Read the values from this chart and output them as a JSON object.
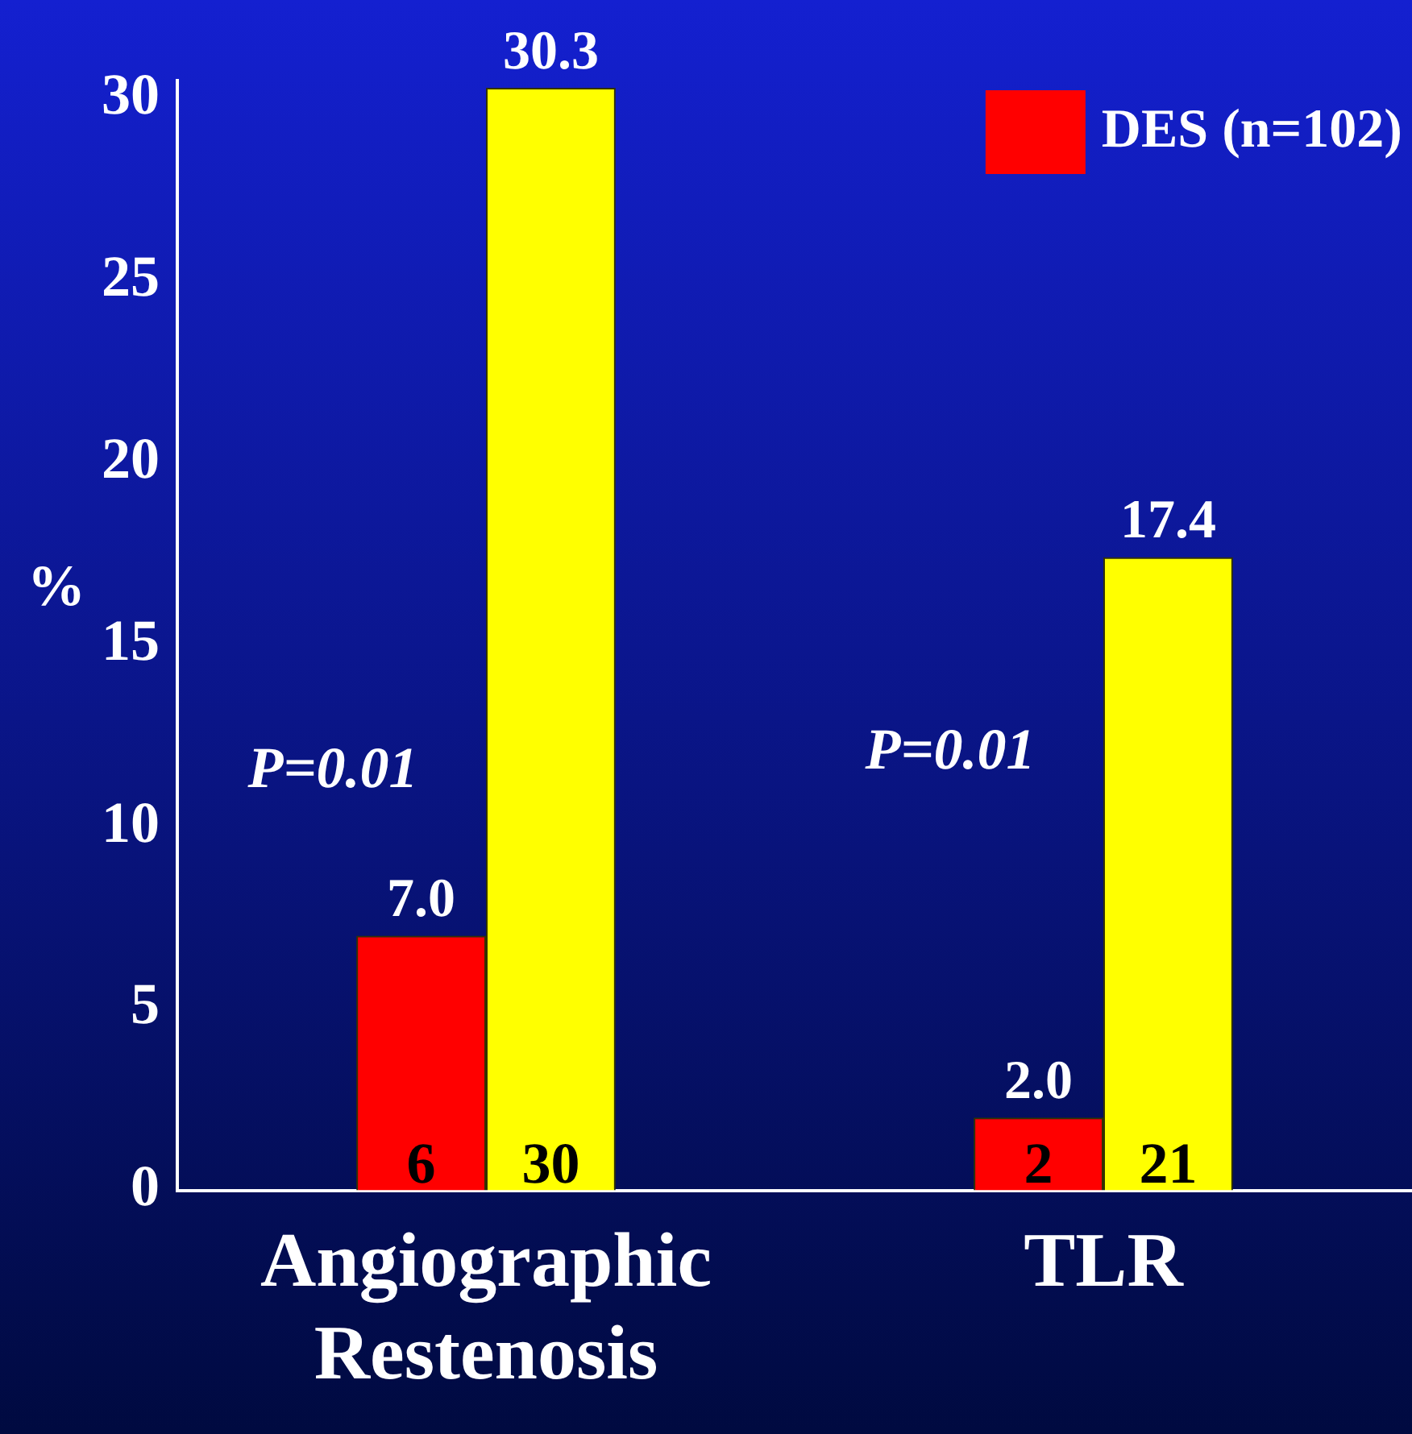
{
  "chart_data": {
    "type": "bar",
    "ylabel": "%",
    "categories": [
      "Angiographic Restenosis",
      "TLR"
    ],
    "series": [
      {
        "name": "DES (n=102)",
        "color": "#ff0000",
        "values": [
          7.0,
          2.0
        ],
        "value_labels": [
          "7.0",
          "2.0"
        ]
      },
      {
        "color": "#ffff00",
        "values": [
          30.3,
          17.4
        ],
        "value_labels": [
          "30.3",
          "17.4"
        ]
      }
    ],
    "ylim": [
      0,
      30.5
    ],
    "yticks": [
      0,
      5,
      10,
      15,
      20,
      25,
      30
    ],
    "grid": false,
    "legend": "top right",
    "annotations": [
      {
        "text": "P=0.01",
        "x": "Angiographic Restenosis",
        "y": 11.5
      },
      {
        "text": "P=0.01",
        "x": "TLR",
        "y": 12
      },
      {
        "text": "6",
        "x": "Angiographic Restenosis",
        "y": 0
      },
      {
        "text": "30",
        "x": "Angiographic Restenosis",
        "y": 0
      },
      {
        "text": "2",
        "x": "TLR",
        "y": 0
      },
      {
        "text": "21",
        "x": "TLR",
        "y": 0
      }
    ]
  }
}
